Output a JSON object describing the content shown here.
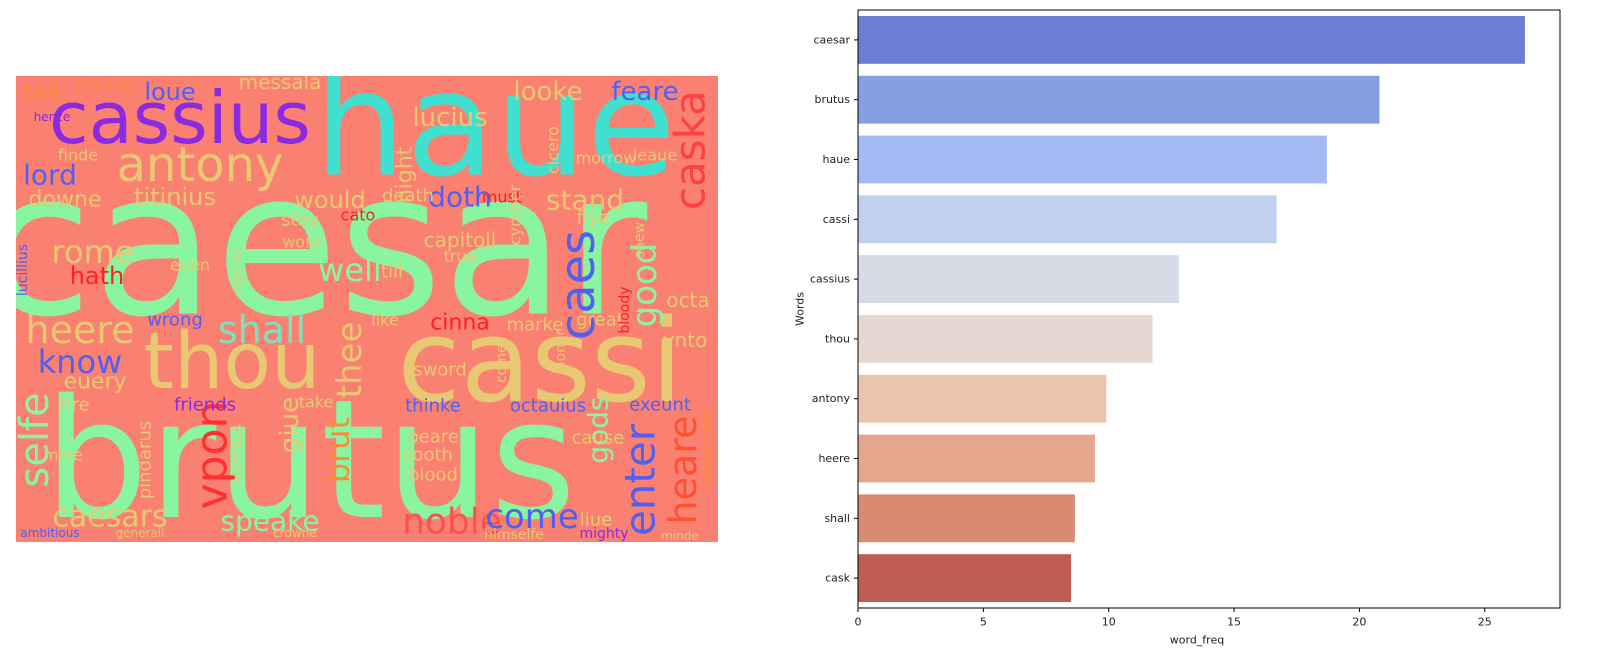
{
  "chart_data": [
    {
      "type": "wordcloud",
      "background": "#fa8072",
      "words": [
        {
          "text": "caesar",
          "color": "#8af5a0"
        },
        {
          "text": "brutus",
          "color": "#8af5a0"
        },
        {
          "text": "haue",
          "color": "#40e0d0"
        },
        {
          "text": "cassius",
          "color": "#8a2be2"
        },
        {
          "text": "cassi",
          "color": "#e8c872"
        },
        {
          "text": "thou",
          "color": "#e8c872"
        },
        {
          "text": "antony",
          "color": "#e8c872"
        },
        {
          "text": "heere",
          "color": "#e8c872"
        },
        {
          "text": "shall",
          "color": "#7fe0c0"
        },
        {
          "text": "caska",
          "color": "#ff4040"
        },
        {
          "text": "caes",
          "color": "#5060f0"
        },
        {
          "text": "enter",
          "color": "#5060f0"
        },
        {
          "text": "heare",
          "color": "#ff5030"
        },
        {
          "text": "selfe",
          "color": "#8af5a0"
        },
        {
          "text": "vpon",
          "color": "#ff3030"
        },
        {
          "text": "noble",
          "color": "#ff5050"
        },
        {
          "text": "come",
          "color": "#5060f0"
        },
        {
          "text": "speake",
          "color": "#8af5a0"
        },
        {
          "text": "caesars",
          "color": "#e8c872"
        },
        {
          "text": "know",
          "color": "#5060f0"
        },
        {
          "text": "lord",
          "color": "#5060f0"
        },
        {
          "text": "rome",
          "color": "#e8c872"
        },
        {
          "text": "hath",
          "color": "#ff2020"
        },
        {
          "text": "well",
          "color": "#8af5a0"
        },
        {
          "text": "good",
          "color": "#8af5a0"
        },
        {
          "text": "stand",
          "color": "#e8c872"
        },
        {
          "text": "doth",
          "color": "#5060f0"
        },
        {
          "text": "looke",
          "color": "#e8c872"
        },
        {
          "text": "feare",
          "color": "#5060f0"
        },
        {
          "text": "lucius",
          "color": "#e8c872"
        },
        {
          "text": "loue",
          "color": "#5060f0"
        },
        {
          "text": "tell",
          "color": "#ff8a3a"
        },
        {
          "text": "messala",
          "color": "#e8c872"
        },
        {
          "text": "titinius",
          "color": "#e8c872"
        },
        {
          "text": "would",
          "color": "#e8c872"
        },
        {
          "text": "downe",
          "color": "#e8c872"
        },
        {
          "text": "night",
          "color": "#e8c872"
        },
        {
          "text": "thee",
          "color": "#e8c872"
        },
        {
          "text": "cinna",
          "color": "#ff2020"
        },
        {
          "text": "euery",
          "color": "#e8c872"
        },
        {
          "text": "gods",
          "color": "#8af5a0"
        },
        {
          "text": "brut",
          "color": "#ff8a3a"
        },
        {
          "text": "cato",
          "color": "#ff2020"
        },
        {
          "text": "capitoll",
          "color": "#e8c872"
        },
        {
          "text": "flye",
          "color": "#e8c872"
        },
        {
          "text": "death",
          "color": "#e8c872"
        },
        {
          "text": "must",
          "color": "#ff2020"
        },
        {
          "text": "word",
          "color": "#e8c872"
        },
        {
          "text": "euen",
          "color": "#e8c872"
        },
        {
          "text": "till",
          "color": "#e8c872"
        },
        {
          "text": "wrong",
          "color": "#5060f0"
        },
        {
          "text": "like",
          "color": "#e8c872"
        },
        {
          "text": "marke",
          "color": "#e8c872"
        },
        {
          "text": "octa",
          "color": "#e8c872"
        },
        {
          "text": "vnto",
          "color": "#e8c872"
        },
        {
          "text": "sword",
          "color": "#e8c872"
        },
        {
          "text": "friends",
          "color": "#8a2be2"
        },
        {
          "text": "take",
          "color": "#e8c872"
        },
        {
          "text": "thinke",
          "color": "#5060f0"
        },
        {
          "text": "octauius",
          "color": "#5060f0"
        },
        {
          "text": "exeunt",
          "color": "#5060f0"
        },
        {
          "text": "fire",
          "color": "#e8c872"
        },
        {
          "text": "mine",
          "color": "#e8c872"
        },
        {
          "text": "sooth",
          "color": "#e8c872"
        },
        {
          "text": "blood",
          "color": "#e8c872"
        },
        {
          "text": "beare",
          "color": "#e8c872"
        },
        {
          "text": "cause",
          "color": "#e8c872"
        },
        {
          "text": "liue",
          "color": "#e8c872"
        },
        {
          "text": "himselfe",
          "color": "#e8c872"
        },
        {
          "text": "mighty",
          "color": "#8a2be2"
        },
        {
          "text": "ambitious",
          "color": "#5060f0"
        },
        {
          "text": "generall",
          "color": "#e8c872"
        },
        {
          "text": "crowne",
          "color": "#e8c872"
        },
        {
          "text": "minde",
          "color": "#e8c872"
        },
        {
          "text": "honourable",
          "color": "#ff8a3a"
        },
        {
          "text": "pindarus",
          "color": "#e8c872"
        },
        {
          "text": "metellus",
          "color": "#e8c872"
        },
        {
          "text": "giue",
          "color": "#e8c872"
        },
        {
          "text": "hence",
          "color": "#8a2be2"
        },
        {
          "text": "finde",
          "color": "#e8c872"
        },
        {
          "text": "cicero",
          "color": "#e8c872"
        },
        {
          "text": "morrow",
          "color": "#e8c872"
        },
        {
          "text": "leaue",
          "color": "#e8c872"
        },
        {
          "text": "stay",
          "color": "#e8c872"
        },
        {
          "text": "cymber",
          "color": "#e8c872"
        },
        {
          "text": "lucillius",
          "color": "#5060f0"
        },
        {
          "text": "honor",
          "color": "#e8c872"
        },
        {
          "text": "great",
          "color": "#e8c872"
        },
        {
          "text": "comes",
          "color": "#e8c872"
        },
        {
          "text": "shew",
          "color": "#e8c872"
        },
        {
          "text": "true",
          "color": "#e8c872"
        },
        {
          "text": "bloody",
          "color": "#ff2020"
        },
        {
          "text": "againe",
          "color": "#e8c872"
        },
        {
          "text": "decius",
          "color": "#ff8a3a"
        }
      ]
    },
    {
      "type": "bar",
      "orientation": "horizontal",
      "xlabel": "word_freq",
      "ylabel": "Words",
      "categories": [
        "caesar",
        "brutus",
        "haue",
        "cassi",
        "cassius",
        "thou",
        "antony",
        "heere",
        "shall",
        "cask"
      ],
      "values": [
        26.6,
        20.8,
        18.7,
        16.7,
        12.8,
        11.75,
        9.9,
        9.45,
        8.65,
        8.5
      ],
      "colors": [
        "#6a7fd4",
        "#869fe3",
        "#a3baf5",
        "#c0d1f0",
        "#d6dbe6",
        "#e5d8d0",
        "#ebc4ac",
        "#e4a68c",
        "#d88a72",
        "#c05d52"
      ],
      "xlim": [
        0,
        28
      ],
      "xticks": [
        0,
        5,
        10,
        15,
        20,
        25
      ]
    }
  ]
}
